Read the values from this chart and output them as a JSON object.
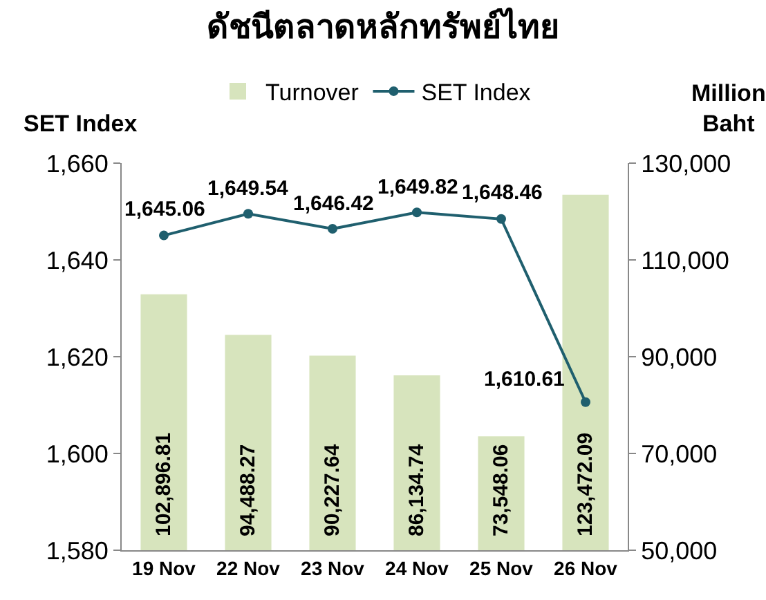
{
  "chart_data": {
    "type": "bar",
    "title": "ดัชนีตลาดหลักทรัพย์ไทย",
    "ylabel": "SET Index",
    "y2label": "Million Baht",
    "categories": [
      "19 Nov",
      "22 Nov",
      "23 Nov",
      "24 Nov",
      "25 Nov",
      "26 Nov"
    ],
    "series": [
      {
        "name": "Turnover",
        "axis": "y2",
        "color": "#d7e4bd",
        "values": [
          102896.81,
          94488.27,
          90227.64,
          86134.74,
          73548.06,
          123472.09
        ],
        "value_labels": [
          "102,896.81",
          "94,488.27",
          "90,227.64",
          "86,134.74",
          "73,548.06",
          "123,472.09"
        ]
      },
      {
        "name": "SET Index",
        "type": "line",
        "color": "#1f5f6e",
        "marker": "circle",
        "values": [
          1645.06,
          1649.54,
          1646.42,
          1649.82,
          1648.46,
          1610.61
        ],
        "value_labels": [
          "1,645.06",
          "1,649.54",
          "1,646.42",
          "1,649.82",
          "1,648.46",
          "1,610.61"
        ]
      }
    ],
    "ylim": [
      1580,
      1660
    ],
    "yticks": [
      {
        "value": 1580,
        "label": "1,580"
      },
      {
        "value": 1600,
        "label": "1,600"
      },
      {
        "value": 1620,
        "label": "1,620"
      },
      {
        "value": 1640,
        "label": "1,640"
      },
      {
        "value": 1660,
        "label": "1,660"
      }
    ],
    "y2lim": [
      50000,
      130000
    ],
    "y2ticks": [
      {
        "value": 50000,
        "label": "50,000"
      },
      {
        "value": 70000,
        "label": "70,000"
      },
      {
        "value": 90000,
        "label": "90,000"
      },
      {
        "value": 110000,
        "label": "110,000"
      },
      {
        "value": 130000,
        "label": "130,000"
      }
    ],
    "grid": false,
    "legend": "top"
  }
}
